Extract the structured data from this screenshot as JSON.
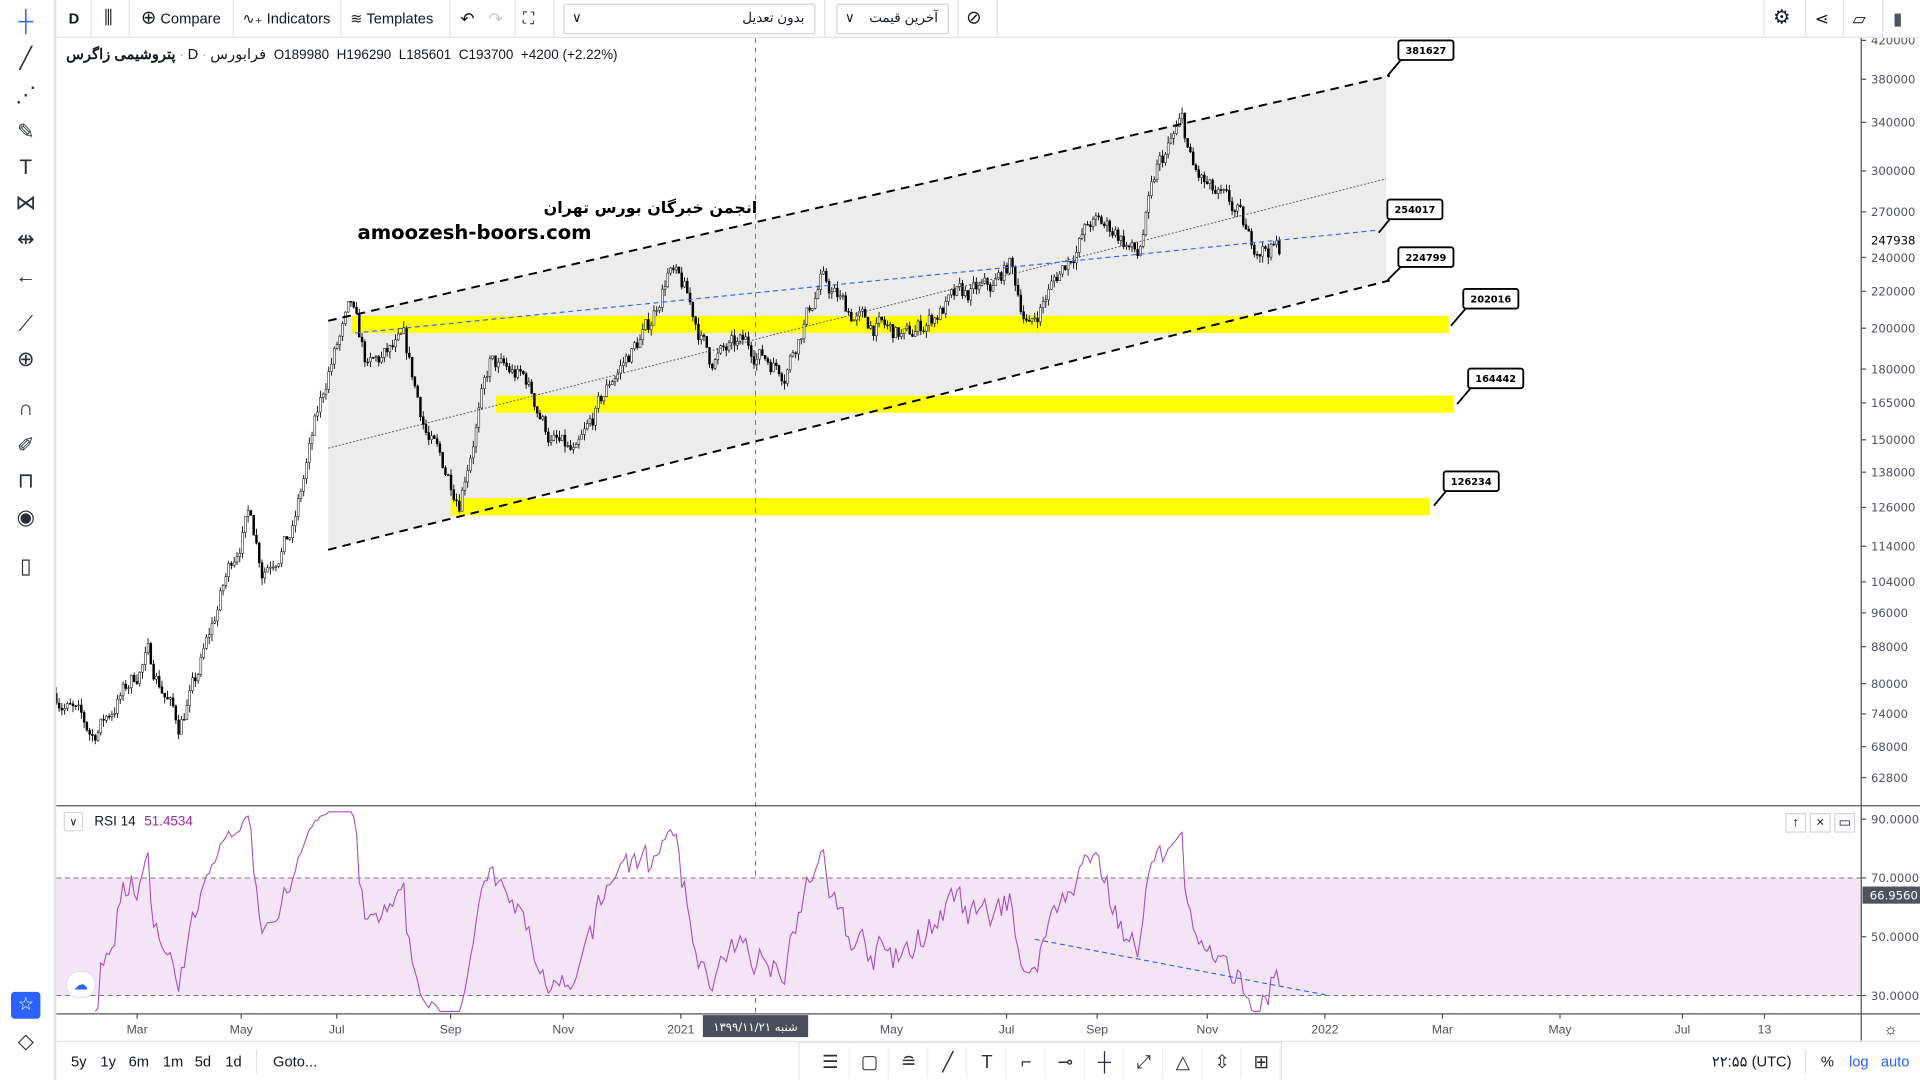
{
  "toolbar": {
    "interval": "D",
    "compare": "Compare",
    "indicators": "Indicators",
    "templates": "Templates",
    "adjustment_select": "بدون تعدیل",
    "price_select": "آخرین قیمت"
  },
  "left_toolbar": [
    "crosshair-icon",
    "trend-line-icon",
    "fib-icon",
    "brush-icon",
    "text-icon",
    "pattern-icon",
    "prediction-icon",
    "back-arrow-icon",
    "ruler-icon",
    "zoom-in-icon",
    "magnet-icon",
    "lock-drawing-icon",
    "unlock-icon",
    "eye-icon",
    "trash-icon"
  ],
  "legend": {
    "name": "پتروشیمی زاگرس",
    "interval": "D",
    "exchange": "فرابورس",
    "open": "O189980",
    "high": "H196290",
    "low": "L185601",
    "close": "C193700",
    "change": "+4200 (+2.22%)"
  },
  "watermark": {
    "line1": "انجمن خبرگان بورس تهران",
    "line2": "amoozesh-boors.com"
  },
  "chart_data": {
    "type": "candlestick",
    "scale": "log",
    "price_ticks": [
      "420000",
      "380000",
      "340000",
      "300000",
      "270000",
      "240000",
      "220000",
      "200000",
      "180000",
      "165000",
      "150000",
      "138000",
      "126000",
      "114000",
      "104000",
      "96000",
      "88000",
      "80000",
      "74000",
      "68000",
      "62800"
    ],
    "last_price": "247938",
    "time_labels": [
      "Mar",
      "May",
      "Jul",
      "Sep",
      "Nov",
      "2021",
      "May",
      "Jul",
      "Sep",
      "Nov",
      "2022",
      "Mar",
      "May",
      "Jul",
      "13"
    ],
    "crosshair_date": "شنبه ۱۳۹۹/۱۱/۲۱",
    "price_path": [
      [
        0,
        78000
      ],
      [
        13,
        70000
      ],
      [
        24,
        78000
      ],
      [
        33,
        86000
      ],
      [
        44,
        72000
      ],
      [
        50,
        80000
      ],
      [
        63,
        110000
      ],
      [
        70,
        125000
      ],
      [
        74,
        108000
      ],
      [
        85,
        118000
      ],
      [
        92,
        150000
      ],
      [
        98,
        180000
      ],
      [
        106,
        210000
      ],
      [
        112,
        180000
      ],
      [
        125,
        192000
      ],
      [
        134,
        150000
      ],
      [
        145,
        130000
      ],
      [
        156,
        182000
      ],
      [
        169,
        175000
      ],
      [
        178,
        150000
      ],
      [
        187,
        143000
      ],
      [
        200,
        176000
      ],
      [
        213,
        200000
      ],
      [
        220,
        232000
      ],
      [
        226,
        220000
      ],
      [
        235,
        185000
      ],
      [
        248,
        192000
      ],
      [
        262,
        180000
      ],
      [
        275,
        226000
      ],
      [
        288,
        205000
      ],
      [
        306,
        195000
      ],
      [
        315,
        206000
      ],
      [
        324,
        216000
      ],
      [
        337,
        222000
      ],
      [
        343,
        236000
      ],
      [
        350,
        200000
      ],
      [
        359,
        226000
      ],
      [
        372,
        262000
      ],
      [
        381,
        258000
      ],
      [
        389,
        240000
      ],
      [
        396,
        300000
      ],
      [
        405,
        340000
      ],
      [
        409,
        300000
      ],
      [
        416,
        282000
      ],
      [
        425,
        268000
      ],
      [
        429,
        250000
      ],
      [
        440,
        245000
      ]
    ],
    "levels": [
      "381627",
      "254017",
      "224799",
      "202016",
      "164442",
      "126234"
    ],
    "zones": [
      202016,
      164442,
      126234
    ]
  },
  "rsi": {
    "label": "RSI",
    "period": "14",
    "value": "51.4534",
    "last_tag": "66.9560",
    "ticks": [
      "90.0000",
      "70.0000",
      "50.0000",
      "30.0000"
    ],
    "band": [
      70,
      30
    ]
  },
  "bottom": {
    "ranges": [
      "5y",
      "1y",
      "6m",
      "1m",
      "5d",
      "1d"
    ],
    "goto": "Goto...",
    "clock": "۲۲:۵۵ (UTC)",
    "percent": "%",
    "log": "log",
    "auto": "auto"
  },
  "colors": {
    "accent": "#2962ff",
    "zone": "#ffff00",
    "rsi": "#9c27b0",
    "rsi_band": "#f3e5f5"
  }
}
